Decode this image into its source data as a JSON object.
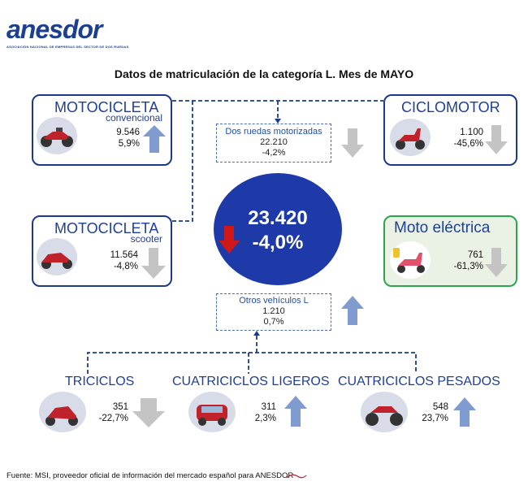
{
  "logo": {
    "name": "anesdor",
    "tagline": "ASOCIACIÓN NACIONAL DE EMPRESAS DEL SECTOR DE DOS RUEDAS"
  },
  "title": "Datos de matriculación de la categoría L. Mes de MAYO",
  "total": {
    "value": "23.420",
    "change": "-4,0%",
    "trend": "down"
  },
  "motocicleta_convencional": {
    "title": "MOTOCICLETA",
    "subtitle": "convencional",
    "value": "9.546",
    "change": "5,9%",
    "trend": "up"
  },
  "motocicleta_scooter": {
    "title": "MOTOCICLETA",
    "subtitle": "scooter",
    "value": "11.564",
    "change": "-4,8%",
    "trend": "down"
  },
  "ciclomotor": {
    "title": "CICLOMOTOR",
    "value": "1.100",
    "change": "-45,6%",
    "trend": "down"
  },
  "moto_electrica": {
    "title": "Moto eléctrica",
    "value": "761",
    "change": "-61,3%",
    "trend": "down"
  },
  "dos_ruedas": {
    "label": "Dos ruedas motorizadas",
    "value": "22.210",
    "change": "-4,2%",
    "trend": "down"
  },
  "otros": {
    "label": "Otros vehículos L",
    "value": "1.210",
    "change": "0,7%",
    "trend": "up"
  },
  "triciclos": {
    "title": "TRICICLOS",
    "value": "351",
    "change": "-22,7%",
    "trend": "down"
  },
  "cuatriciclos_ligeros": {
    "title": "CUATRICICLOS LIGEROS",
    "value": "311",
    "change": "2,3%",
    "trend": "up"
  },
  "cuatriciclos_pesados": {
    "title": "CUATRICICLOS PESADOS",
    "value": "548",
    "change": "23,7%",
    "trend": "up"
  },
  "footer": "Fuente: MSI, proveedor oficial de información del mercado español para ANESDOR",
  "colors": {
    "navy": "#1d3a8a",
    "green": "#2fa44f",
    "arrow_up": "#7f9bd0",
    "arrow_down": "#c4c4c4",
    "arrow_red": "#d01818"
  }
}
